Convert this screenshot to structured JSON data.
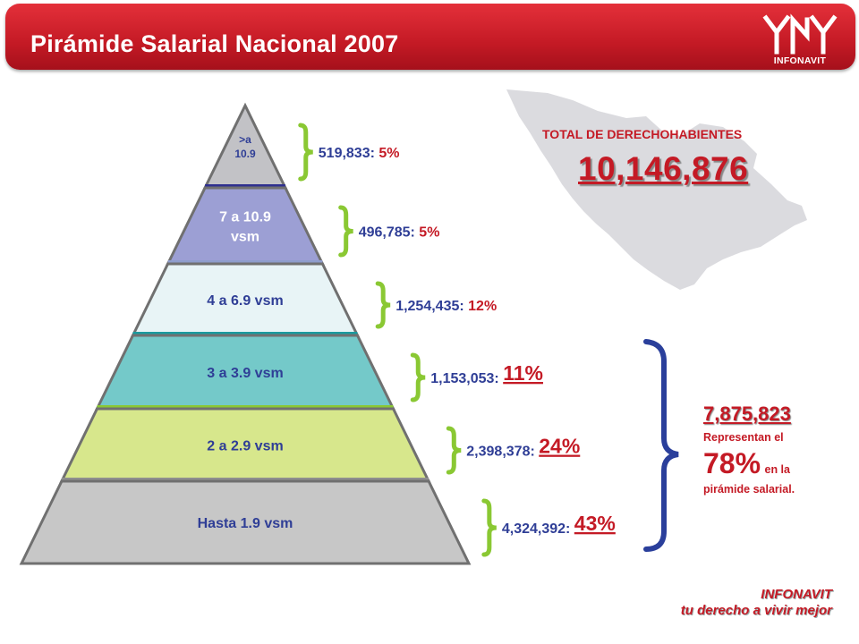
{
  "header": {
    "title": "Pirámide Salarial Nacional 2007",
    "logo_text": "INFONAVIT"
  },
  "total": {
    "label": "TOTAL DE DERECHOHABIENTES",
    "value": "10,146,876"
  },
  "summary": {
    "value": "7,875,823",
    "text1": "Representan el",
    "pct": "78%",
    "text2": "en la",
    "text3": "pirámide salarial."
  },
  "footer": {
    "line1": "INFONAVIT",
    "line2": "tu derecho a vivir mejor"
  },
  "colors": {
    "accent": "#c41a25",
    "bracket_green": "#8ac833",
    "summary_bracket": "#2a3f9b"
  },
  "chart_data": {
    "type": "pyramid",
    "levels": [
      {
        "label_lines": [
          ">a",
          "10.9"
        ],
        "count": "519,833",
        "pct": "5%",
        "fill": "#c2c2c6",
        "band": "#2e2f8f"
      },
      {
        "label_lines": [
          "7 a 10.9",
          "vsm"
        ],
        "count": "496,785",
        "pct": "5%",
        "fill": "#9c9fd4",
        "band": "#8e9dcc"
      },
      {
        "label_lines": [
          "4 a 6.9 vsm"
        ],
        "count": "1,254,435",
        "pct": "12%",
        "fill": "#e8f4f6",
        "band": "#1a9a9e"
      },
      {
        "label_lines": [
          "3 a 3.9 vsm"
        ],
        "count": "1,153,053",
        "pct": "11%",
        "fill": "#74c9c9",
        "band": "#8ac833"
      },
      {
        "label_lines": [
          "2 a 2.9 vsm"
        ],
        "count": "2,398,378",
        "pct": "24%",
        "fill": "#d7e78c",
        "band": "#8e8e8e"
      },
      {
        "label_lines": [
          "Hasta 1.9 vsm"
        ],
        "count": "4,324,392",
        "pct": "43%",
        "fill": "#c7c7c7",
        "band": null
      }
    ]
  }
}
